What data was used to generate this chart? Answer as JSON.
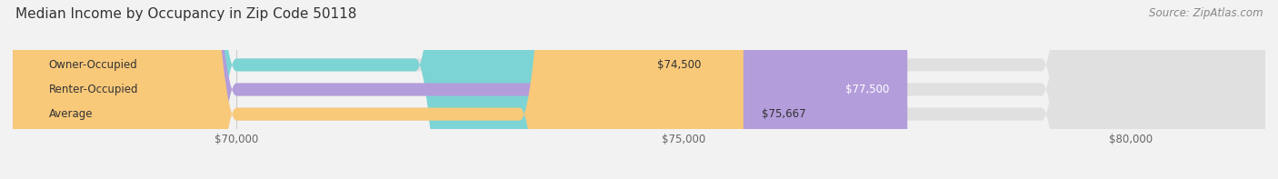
{
  "title": "Median Income by Occupancy in Zip Code 50118",
  "source": "Source: ZipAtlas.com",
  "categories": [
    "Owner-Occupied",
    "Renter-Occupied",
    "Average"
  ],
  "values": [
    74500,
    77500,
    75667
  ],
  "bar_colors": [
    "#7dd4d4",
    "#b39ddb",
    "#f9c97a"
  ],
  "value_labels": [
    "$74,500",
    "$77,500",
    "$75,667"
  ],
  "xlim": [
    67500,
    81500
  ],
  "xticks": [
    70000,
    75000,
    80000
  ],
  "xtick_labels": [
    "$70,000",
    "$75,000",
    "$80,000"
  ],
  "background_color": "#f2f2f2",
  "bar_bg_color": "#e0e0e0",
  "title_fontsize": 11,
  "source_fontsize": 8.5,
  "label_fontsize": 8.5,
  "tick_fontsize": 8.5,
  "bar_height": 0.52
}
